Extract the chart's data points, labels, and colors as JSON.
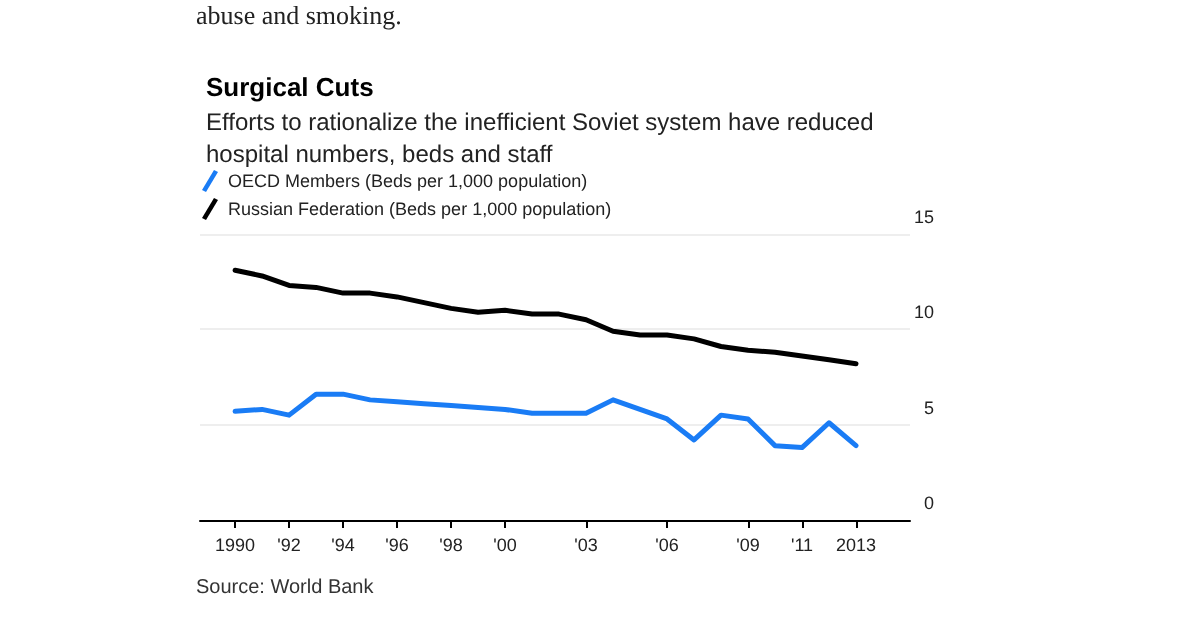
{
  "chart_data": {
    "type": "line",
    "title": "Surgical Cuts",
    "subtitle": "Efforts to rationalize the inefficient Soviet system have reduced\nhospital numbers, beds and staff",
    "annotations": [
      "abuse and smoking.",
      "Source: World Bank"
    ],
    "x": [
      1990,
      1991,
      1992,
      1993,
      1994,
      1995,
      1996,
      1997,
      1998,
      1999,
      2000,
      2001,
      2002,
      2003,
      2004,
      2005,
      2006,
      2007,
      2008,
      2009,
      2010,
      2011,
      2012,
      2013
    ],
    "series": [
      {
        "name": "OECD Members (Beds per 1,000 population)",
        "color": "#1a7cf5",
        "values": [
          5.7,
          5.8,
          5.5,
          6.6,
          6.6,
          6.3,
          6.2,
          6.1,
          6.0,
          5.9,
          5.8,
          5.6,
          5.6,
          5.6,
          6.3,
          5.8,
          5.3,
          4.2,
          5.5,
          5.3,
          3.9,
          3.8,
          5.1,
          3.9
        ]
      },
      {
        "name": "Russian Federation (Beds per 1,000 population)",
        "color": "#000000",
        "values": [
          13.1,
          12.8,
          12.3,
          12.2,
          11.9,
          11.9,
          11.7,
          11.4,
          11.1,
          10.9,
          11.0,
          10.8,
          10.8,
          10.5,
          9.9,
          9.7,
          9.7,
          9.5,
          9.1,
          8.9,
          8.8,
          8.6,
          8.4,
          8.2
        ]
      }
    ],
    "xlim": [
      1988.7,
      2015
    ],
    "xticks": [
      {
        "value": 1990,
        "label": "1990"
      },
      {
        "value": 1992,
        "label": "'92"
      },
      {
        "value": 1994,
        "label": "'94"
      },
      {
        "value": 1996,
        "label": "'96"
      },
      {
        "value": 1998,
        "label": "'98"
      },
      {
        "value": 2000,
        "label": "'00"
      },
      {
        "value": 2003,
        "label": "'03"
      },
      {
        "value": 2006,
        "label": "'06"
      },
      {
        "value": 2009,
        "label": "'09"
      },
      {
        "value": 2011,
        "label": "'11"
      },
      {
        "value": 2013,
        "label": "2013"
      }
    ],
    "ylim": [
      0,
      15
    ],
    "yticks": [
      0,
      5,
      10,
      15
    ],
    "grid": "y",
    "legend": "top left",
    "marker": "none",
    "line_style": "solid"
  }
}
